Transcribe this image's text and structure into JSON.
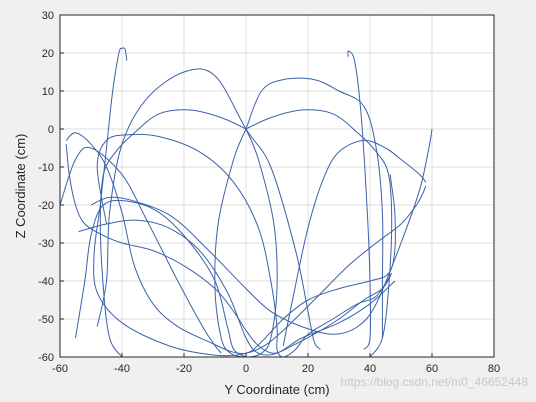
{
  "chart_data": {
    "type": "line",
    "xlabel": "Y Coordinate (cm)",
    "ylabel": "Z Coordinate (cm)",
    "xlim": [
      -60,
      80
    ],
    "ylim": [
      -60,
      30
    ],
    "xticks": [
      -60,
      -40,
      -20,
      0,
      20,
      40,
      60,
      80
    ],
    "yticks": [
      -60,
      -50,
      -40,
      -30,
      -20,
      -10,
      0,
      10,
      20,
      30
    ],
    "grid": true,
    "line_color": "#3b62a8",
    "series": [
      {
        "points": [
          [
            -38.5,
            18
          ],
          [
            -39,
            21
          ],
          [
            -40,
            21.2
          ],
          [
            -41,
            20
          ],
          [
            -43,
            10
          ],
          [
            -45,
            -5
          ],
          [
            -47,
            -20
          ],
          [
            -49,
            -33
          ],
          [
            -48,
            -43
          ],
          [
            -40,
            -51
          ],
          [
            -25,
            -57
          ],
          [
            -10,
            -59.5
          ],
          [
            0,
            -59
          ],
          [
            5,
            -56
          ],
          [
            12,
            -50
          ],
          [
            20,
            -45
          ],
          [
            30,
            -42
          ],
          [
            40,
            -40
          ],
          [
            46,
            -38
          ],
          [
            48,
            -32
          ],
          [
            48,
            -22
          ],
          [
            47,
            -15
          ],
          [
            46.5,
            -12
          ]
        ]
      },
      {
        "points": [
          [
            -58,
            -3
          ],
          [
            -55,
            -1
          ],
          [
            -50,
            -4
          ],
          [
            -45,
            -10
          ],
          [
            -40,
            -22
          ],
          [
            -36,
            -36
          ],
          [
            -30,
            -46
          ],
          [
            -22,
            -52
          ],
          [
            -12,
            -56
          ],
          [
            -5,
            -58.5
          ],
          [
            0,
            -59
          ],
          [
            6,
            -57
          ],
          [
            12,
            -53
          ],
          [
            22,
            -45
          ],
          [
            33,
            -36
          ],
          [
            42,
            -30
          ],
          [
            50,
            -25
          ],
          [
            55,
            -20
          ],
          [
            57,
            -17
          ],
          [
            58,
            -15
          ]
        ]
      },
      {
        "points": [
          [
            -58,
            -4
          ],
          [
            -57,
            -12
          ],
          [
            -55,
            -20
          ],
          [
            -52,
            -25
          ],
          [
            -46,
            -28
          ],
          [
            -40,
            -30
          ],
          [
            -30,
            -32
          ],
          [
            -20,
            -36
          ],
          [
            -10,
            -42
          ],
          [
            -4,
            -48
          ],
          [
            0,
            -53
          ],
          [
            4,
            -57
          ],
          [
            9,
            -59
          ],
          [
            15,
            -57
          ],
          [
            22,
            -54
          ],
          [
            30,
            -50
          ],
          [
            38,
            -45
          ],
          [
            44,
            -42
          ],
          [
            47,
            -38
          ]
        ]
      },
      {
        "points": [
          [
            -45,
            -25
          ],
          [
            -48,
            -10
          ],
          [
            -45,
            -3
          ],
          [
            -38,
            -1.5
          ],
          [
            -28,
            -2
          ],
          [
            -15,
            -6
          ],
          [
            -4,
            -14
          ],
          [
            4,
            -26
          ],
          [
            8,
            -40
          ],
          [
            10,
            -52
          ],
          [
            10,
            -58
          ],
          [
            12,
            -60
          ],
          [
            16,
            -58
          ],
          [
            20,
            -54
          ],
          [
            28,
            -50
          ],
          [
            36,
            -46
          ],
          [
            42,
            -44
          ],
          [
            47,
            -38
          ]
        ]
      },
      {
        "points": [
          [
            0,
            0
          ],
          [
            -4,
            -8
          ],
          [
            -9,
            -25
          ],
          [
            -10,
            -42
          ],
          [
            -8,
            -55
          ],
          [
            -5,
            -59
          ],
          [
            0,
            -60
          ],
          [
            5,
            -59
          ],
          [
            8,
            -55
          ],
          [
            10,
            -42
          ],
          [
            9,
            -25
          ],
          [
            4,
            -8
          ],
          [
            0,
            0
          ]
        ]
      },
      {
        "points": [
          [
            0,
            0
          ],
          [
            8,
            3
          ],
          [
            18,
            5
          ],
          [
            28,
            4
          ],
          [
            36,
            -1
          ],
          [
            42,
            -6
          ],
          [
            46,
            -12
          ],
          [
            47,
            -25
          ],
          [
            46,
            -42
          ],
          [
            44,
            -55
          ],
          [
            40,
            -60
          ]
        ]
      },
      {
        "points": [
          [
            0,
            0
          ],
          [
            -8,
            3
          ],
          [
            -18,
            5
          ],
          [
            -28,
            4
          ],
          [
            -36,
            -1
          ],
          [
            -42,
            -6
          ],
          [
            -46,
            -12
          ],
          [
            -47,
            -25
          ],
          [
            -46,
            -42
          ],
          [
            -44,
            -55
          ],
          [
            -40,
            -60
          ]
        ]
      },
      {
        "points": [
          [
            -54,
            -27
          ],
          [
            -45,
            -25
          ],
          [
            -35,
            -24
          ],
          [
            -25,
            -26
          ],
          [
            -15,
            -32
          ],
          [
            -6,
            -43
          ],
          [
            0,
            -55
          ],
          [
            4,
            -59
          ],
          [
            10,
            -59
          ],
          [
            18,
            -55
          ],
          [
            30,
            -51
          ],
          [
            40,
            -46
          ],
          [
            48,
            -40
          ]
        ]
      },
      {
        "points": [
          [
            -48,
            -52
          ],
          [
            -45,
            -40
          ],
          [
            -44,
            -22
          ],
          [
            -40,
            -4
          ],
          [
            -32,
            8
          ],
          [
            -20,
            15
          ],
          [
            -10,
            14
          ],
          [
            0,
            0
          ],
          [
            8,
            -10
          ],
          [
            16,
            -32
          ],
          [
            20,
            -48
          ],
          [
            22,
            -56
          ],
          [
            24,
            -58
          ]
        ]
      },
      {
        "points": [
          [
            12,
            -57
          ],
          [
            15,
            -45
          ],
          [
            20,
            -26
          ],
          [
            25,
            -13
          ],
          [
            30,
            -6
          ],
          [
            38,
            -3
          ],
          [
            45,
            -5
          ],
          [
            50,
            -8
          ],
          [
            56,
            -12
          ],
          [
            58,
            -14
          ]
        ]
      },
      {
        "points": [
          [
            0,
            0
          ],
          [
            5,
            10
          ],
          [
            12,
            13
          ],
          [
            22,
            13
          ],
          [
            30,
            10
          ],
          [
            38,
            6
          ],
          [
            42,
            -5
          ],
          [
            44,
            -22
          ],
          [
            44,
            -40
          ],
          [
            44,
            -55
          ]
        ]
      },
      {
        "points": [
          [
            33,
            19
          ],
          [
            33,
            20.5
          ],
          [
            35,
            18
          ],
          [
            37,
            5
          ],
          [
            39,
            -20
          ],
          [
            40,
            -40
          ],
          [
            40,
            -55
          ],
          [
            38,
            -58
          ]
        ]
      },
      {
        "points": [
          [
            -50,
            -20
          ],
          [
            -44,
            -18
          ],
          [
            -36,
            -19
          ],
          [
            -24,
            -23
          ],
          [
            -12,
            -32
          ],
          [
            0,
            -42
          ],
          [
            8,
            -48
          ],
          [
            18,
            -52
          ],
          [
            28,
            -54
          ],
          [
            36,
            -52
          ],
          [
            42,
            -46
          ],
          [
            50,
            -30
          ],
          [
            56,
            -16
          ],
          [
            59,
            -5
          ],
          [
            60,
            0
          ]
        ]
      },
      {
        "points": [
          [
            -60,
            -20
          ],
          [
            -55,
            -8
          ],
          [
            -50,
            -5
          ],
          [
            -40,
            -12
          ],
          [
            -32,
            -24
          ],
          [
            -22,
            -40
          ],
          [
            -14,
            -52
          ],
          [
            -10,
            -57
          ],
          [
            -8,
            -59
          ]
        ]
      },
      {
        "points": [
          [
            -55,
            -55
          ],
          [
            -52,
            -40
          ],
          [
            -50,
            -28
          ],
          [
            -46,
            -20
          ],
          [
            -38,
            -19
          ],
          [
            -28,
            -22
          ],
          [
            -18,
            -30
          ],
          [
            -10,
            -40
          ],
          [
            -6,
            -52
          ],
          [
            -4,
            -58
          ],
          [
            0,
            -60
          ]
        ]
      }
    ]
  },
  "watermark": "https://blog.csdn.net/m0_46652448"
}
